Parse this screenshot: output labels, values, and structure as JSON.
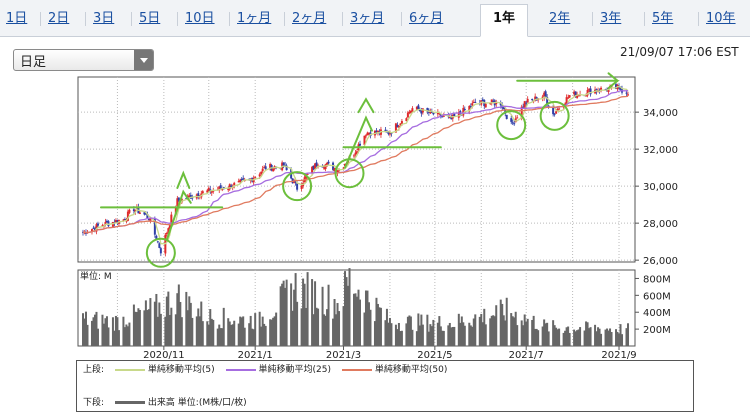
{
  "tabs": [
    "1日",
    "2日",
    "3日",
    "5日",
    "10日",
    "1ヶ月",
    "2ヶ月",
    "3ヶ月",
    "6ヶ月",
    "1年",
    "2年",
    "3年",
    "5年",
    "10年"
  ],
  "active_tab": "1年",
  "period_select": {
    "value": "日足"
  },
  "timestamp": "21/09/07 17:06 EST",
  "colors": {
    "up": "#e0292b",
    "down": "#2f3fa8",
    "ma5": "#c8d98a",
    "ma25": "#a66de0",
    "ma50": "#e07a5f",
    "volume": "#666666",
    "annotation": "#6cbf3c"
  },
  "chart_data": [
    {
      "type": "candlestick",
      "x_labels": [
        "2020/11",
        "2021/1",
        "2021/3",
        "2021/5",
        "2021/7",
        "2021/9"
      ],
      "x_range": [
        "2020-09-08",
        "2021-09-07"
      ],
      "y_ticks": [
        "26,000",
        "28,000",
        "30,000",
        "32,000",
        "34,000"
      ],
      "ylim": [
        25900,
        35900
      ],
      "close_approx": [
        {
          "x": "2020-09-08",
          "y": 27500
        },
        {
          "x": "2020-09-20",
          "y": 27900
        },
        {
          "x": "2020-10-05",
          "y": 28200
        },
        {
          "x": "2020-10-12",
          "y": 28800
        },
        {
          "x": "2020-10-22",
          "y": 28300
        },
        {
          "x": "2020-10-30",
          "y": 26500
        },
        {
          "x": "2020-11-06",
          "y": 28300
        },
        {
          "x": "2020-11-10",
          "y": 29200
        },
        {
          "x": "2020-11-24",
          "y": 29600
        },
        {
          "x": "2020-12-10",
          "y": 29900
        },
        {
          "x": "2020-12-28",
          "y": 30300
        },
        {
          "x": "2021-01-08",
          "y": 31000
        },
        {
          "x": "2021-01-20",
          "y": 31100
        },
        {
          "x": "2021-01-29",
          "y": 29900
        },
        {
          "x": "2021-02-12",
          "y": 31300
        },
        {
          "x": "2021-02-26",
          "y": 30900
        },
        {
          "x": "2021-03-08",
          "y": 31800
        },
        {
          "x": "2021-03-16",
          "y": 32900
        },
        {
          "x": "2021-04-01",
          "y": 32900
        },
        {
          "x": "2021-04-16",
          "y": 34200
        },
        {
          "x": "2021-04-30",
          "y": 33900
        },
        {
          "x": "2021-05-12",
          "y": 33600
        },
        {
          "x": "2021-05-28",
          "y": 34500
        },
        {
          "x": "2021-06-14",
          "y": 34500
        },
        {
          "x": "2021-06-21",
          "y": 33300
        },
        {
          "x": "2021-06-30",
          "y": 34500
        },
        {
          "x": "2021-07-13",
          "y": 34900
        },
        {
          "x": "2021-07-19",
          "y": 33900
        },
        {
          "x": "2021-07-30",
          "y": 34900
        },
        {
          "x": "2021-08-16",
          "y": 35200
        },
        {
          "x": "2021-08-31",
          "y": 35300
        },
        {
          "x": "2021-09-07",
          "y": 35100
        }
      ],
      "ma5": {
        "name": "単純移動平均(5)"
      },
      "ma25": {
        "name": "単純移動平均(25)"
      },
      "ma50": {
        "name": "単純移動平均(50)"
      }
    },
    {
      "type": "bar",
      "unit_label": "単位: M",
      "y_ticks": [
        "800M",
        "600M",
        "400M",
        "200M"
      ],
      "ylim": [
        0,
        900
      ],
      "volume_approx": [
        {
          "x": "2020-09-08",
          "y": 350
        },
        {
          "x": "2020-10-01",
          "y": 320
        },
        {
          "x": "2020-10-30",
          "y": 520
        },
        {
          "x": "2020-11-10",
          "y": 640
        },
        {
          "x": "2020-12-01",
          "y": 380
        },
        {
          "x": "2021-01-04",
          "y": 330
        },
        {
          "x": "2021-01-28",
          "y": 770
        },
        {
          "x": "2021-02-26",
          "y": 560
        },
        {
          "x": "2021-03-05",
          "y": 870
        },
        {
          "x": "2021-04-01",
          "y": 320
        },
        {
          "x": "2021-05-12",
          "y": 300
        },
        {
          "x": "2021-06-18",
          "y": 460
        },
        {
          "x": "2021-07-15",
          "y": 250
        },
        {
          "x": "2021-08-16",
          "y": 230
        },
        {
          "x": "2021-09-07",
          "y": 220
        }
      ]
    }
  ],
  "legend": {
    "top_label": "上段:",
    "bottom_label": "下段:",
    "volume_name": "出来高 単位:(M株/口/枚)"
  }
}
